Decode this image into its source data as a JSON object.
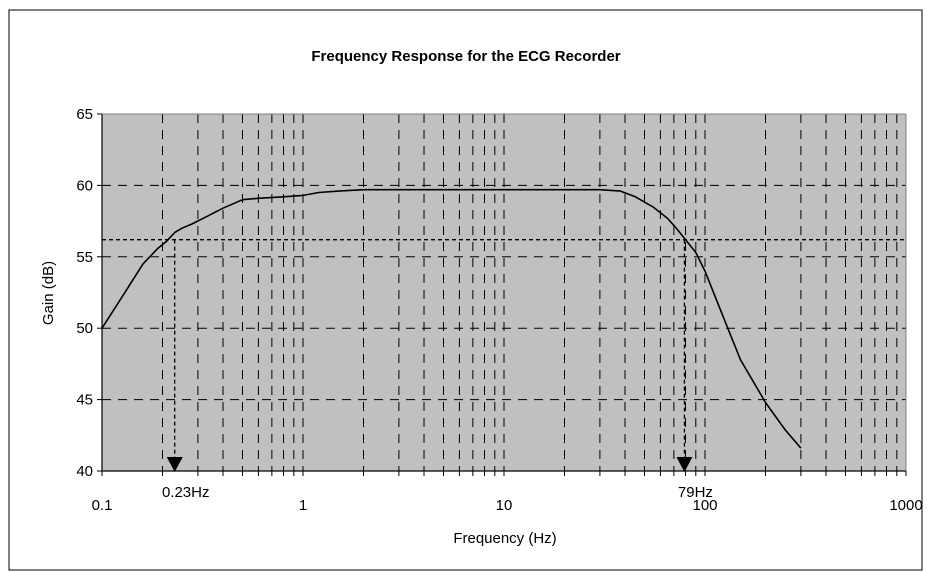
{
  "chart_data": {
    "type": "line",
    "title": "Frequency Response for the ECG Recorder",
    "xlabel": "Frequency (Hz)",
    "ylabel": "Gain (dB)",
    "x_scale": "log",
    "xlim": [
      0.1,
      1000
    ],
    "ylim": [
      40,
      65
    ],
    "x_ticks": [
      "0.1",
      "1",
      "10",
      "100",
      "1000"
    ],
    "y_ticks": [
      "40",
      "45",
      "50",
      "55",
      "60",
      "65"
    ],
    "grid": true,
    "background": "#c0c0c0",
    "series": [
      {
        "color": "#000000",
        "x": [
          0.1,
          0.13,
          0.16,
          0.19,
          0.21,
          0.23,
          0.25,
          0.28,
          0.33,
          0.4,
          0.5,
          0.6,
          0.8,
          1,
          1.2,
          1.5,
          2,
          3,
          5,
          10,
          20,
          30,
          38,
          45,
          55,
          65,
          72,
          79,
          90,
          100,
          120,
          150,
          200,
          250,
          300
        ],
        "y": [
          50,
          52.5,
          54.5,
          55.6,
          56.1,
          56.7,
          57,
          57.3,
          57.8,
          58.4,
          59,
          59.1,
          59.2,
          59.3,
          59.5,
          59.6,
          59.7,
          59.7,
          59.7,
          59.7,
          59.7,
          59.7,
          59.6,
          59.2,
          58.5,
          57.7,
          57,
          56.3,
          55.3,
          54,
          51.2,
          47.8,
          44.8,
          42.9,
          41.6
        ]
      }
    ],
    "reference": {
      "y": 56.2,
      "cutoffs": [
        {
          "x": 0.23,
          "label": "0.23Hz"
        },
        {
          "x": 79,
          "label": "79Hz"
        }
      ]
    }
  }
}
